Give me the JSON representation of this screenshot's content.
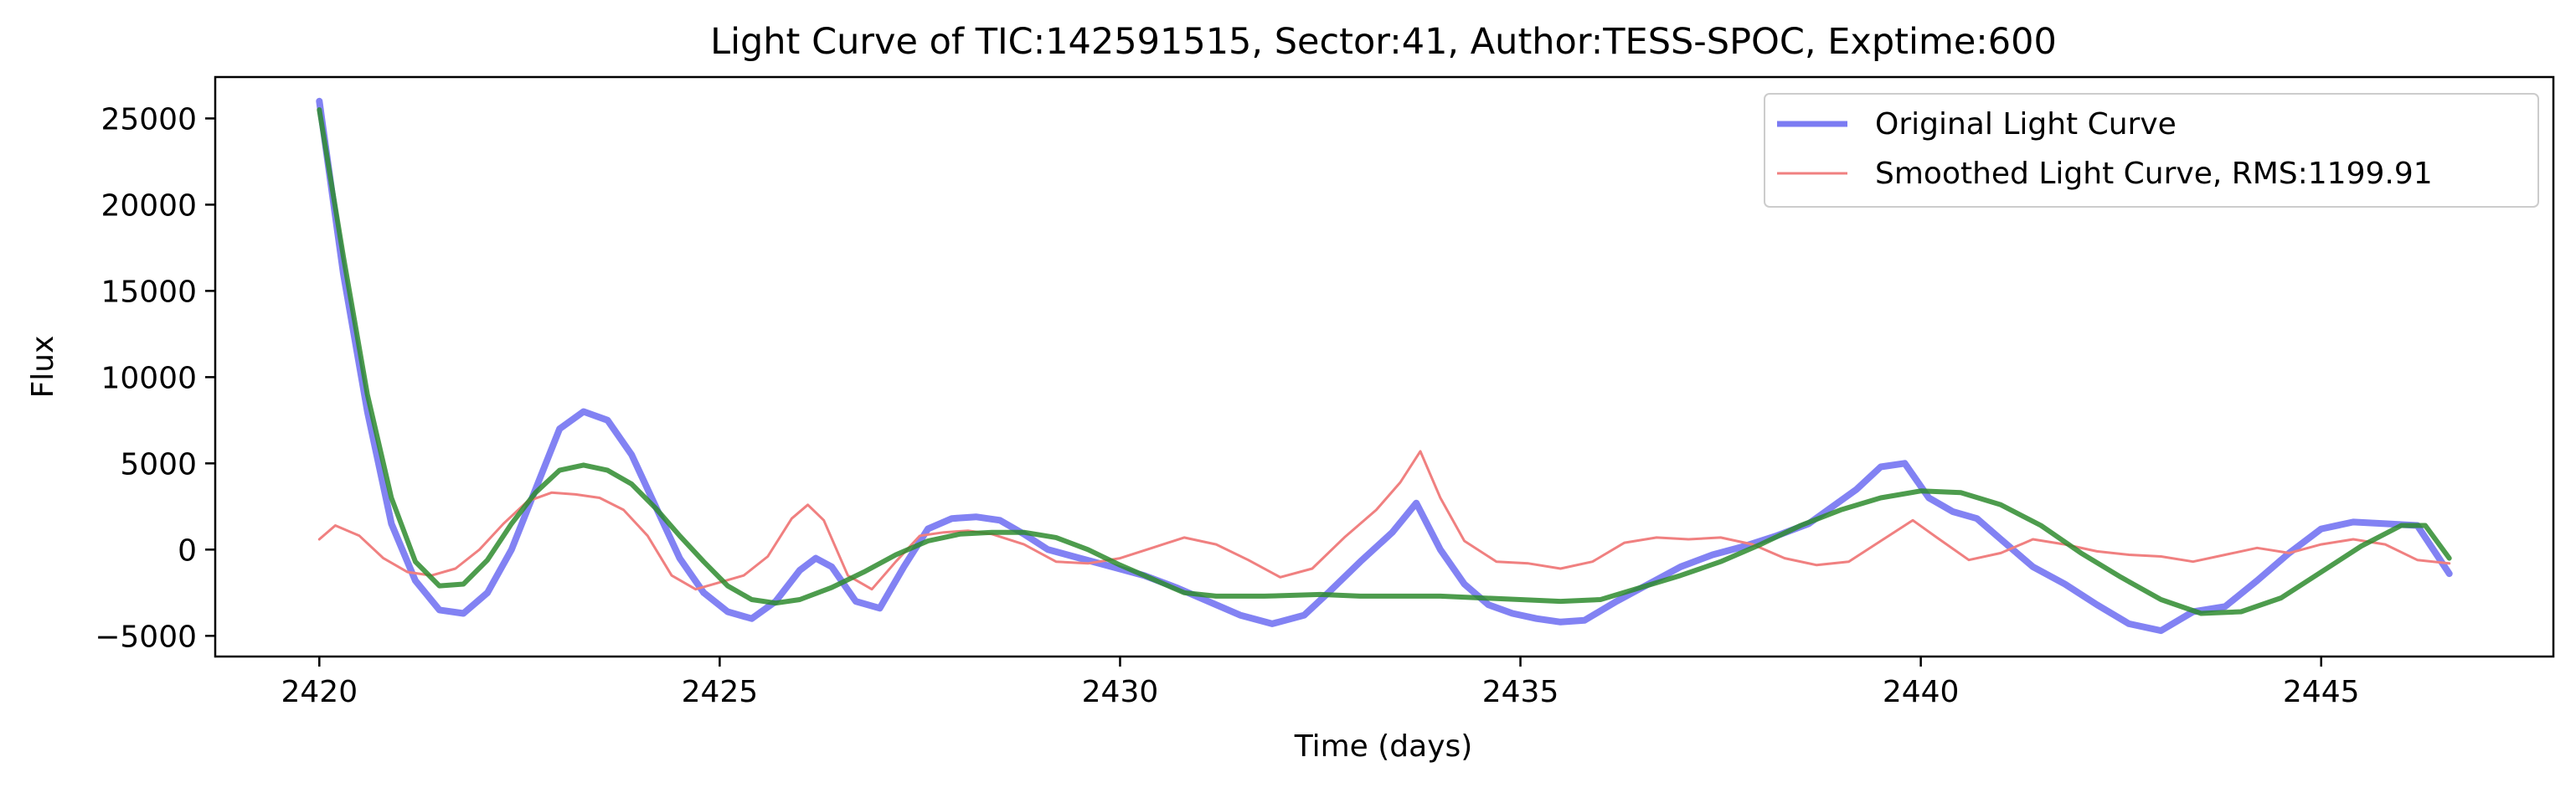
{
  "chart_data": {
    "type": "line",
    "title": "Light Curve of TIC:142591515, Sector:41, Author:TESS-SPOC, Exptime:600",
    "xlabel": "Time (days)",
    "ylabel": "Flux",
    "xlim": [
      2418.7,
      2447.9
    ],
    "ylim": [
      -6200,
      27400
    ],
    "xticks": [
      2420,
      2425,
      2430,
      2435,
      2440,
      2445
    ],
    "xtick_labels": [
      "2420",
      "2425",
      "2430",
      "2435",
      "2440",
      "2445"
    ],
    "yticks": [
      -5000,
      0,
      5000,
      10000,
      15000,
      20000,
      25000
    ],
    "ytick_labels": [
      "−5000",
      "0",
      "5000",
      "10000",
      "15000",
      "20000",
      "25000"
    ],
    "grid": false,
    "legend_position": "upper right",
    "series": [
      {
        "name": "Original Light Curve",
        "color": "#7b7bf2",
        "x": [
          2420.0,
          2420.3,
          2420.6,
          2420.9,
          2421.2,
          2421.5,
          2421.8,
          2422.1,
          2422.4,
          2422.7,
          2423.0,
          2423.3,
          2423.6,
          2423.9,
          2424.2,
          2424.5,
          2424.8,
          2425.1,
          2425.4,
          2425.7,
          2426.0,
          2426.2,
          2426.4,
          2426.7,
          2427.0,
          2427.3,
          2427.6,
          2427.9,
          2428.2,
          2428.5,
          2428.8,
          2429.1,
          2429.5,
          2429.9,
          2430.3,
          2430.7,
          2431.1,
          2431.5,
          2431.9,
          2432.3,
          2432.6,
          2433.0,
          2433.4,
          2433.7,
          2434.0,
          2434.3,
          2434.6,
          2434.9,
          2435.2,
          2435.5,
          2435.8,
          2436.2,
          2436.6,
          2437.0,
          2437.4,
          2437.8,
          2438.2,
          2438.6,
          2438.9,
          2439.2,
          2439.5,
          2439.8,
          2440.1,
          2440.4,
          2440.7,
          2441.0,
          2441.4,
          2441.8,
          2442.2,
          2442.6,
          2443.0,
          2443.4,
          2443.8,
          2444.2,
          2444.6,
          2445.0,
          2445.4,
          2445.8,
          2446.2,
          2446.6
        ],
        "y": [
          26000,
          16000,
          8000,
          1500,
          -1800,
          -3500,
          -3700,
          -2500,
          0,
          3500,
          7000,
          8000,
          7500,
          5500,
          2500,
          -500,
          -2500,
          -3600,
          -4000,
          -3000,
          -1200,
          -500,
          -1000,
          -3000,
          -3400,
          -1000,
          1200,
          1800,
          1900,
          1700,
          900,
          0,
          -500,
          -1000,
          -1500,
          -2200,
          -3000,
          -3800,
          -4300,
          -3800,
          -2500,
          -700,
          1000,
          2700,
          0,
          -2000,
          -3200,
          -3700,
          -4000,
          -4200,
          -4100,
          -3000,
          -2000,
          -1000,
          -300,
          200,
          800,
          1500,
          2500,
          3500,
          4800,
          5000,
          3000,
          2200,
          1800,
          600,
          -1000,
          -2000,
          -3200,
          -4300,
          -4700,
          -3600,
          -3300,
          -1800,
          -200,
          1200,
          1600,
          1500,
          1400,
          -1400
        ]
      },
      {
        "name": "Smoothed Light Curve, RMS:1199.91",
        "color": "#f08080",
        "x": [
          2420.0,
          2420.2,
          2420.5,
          2420.8,
          2421.1,
          2421.4,
          2421.7,
          2422.0,
          2422.3,
          2422.6,
          2422.9,
          2423.2,
          2423.5,
          2423.8,
          2424.1,
          2424.4,
          2424.7,
          2425.0,
          2425.3,
          2425.6,
          2425.9,
          2426.1,
          2426.3,
          2426.6,
          2426.9,
          2427.2,
          2427.5,
          2427.8,
          2428.1,
          2428.4,
          2428.8,
          2429.2,
          2429.6,
          2430.0,
          2430.4,
          2430.8,
          2431.2,
          2431.6,
          2432.0,
          2432.4,
          2432.8,
          2433.2,
          2433.5,
          2433.75,
          2434.0,
          2434.3,
          2434.7,
          2435.1,
          2435.5,
          2435.9,
          2436.3,
          2436.7,
          2437.1,
          2437.5,
          2437.9,
          2438.3,
          2438.7,
          2439.1,
          2439.5,
          2439.9,
          2440.2,
          2440.6,
          2441.0,
          2441.4,
          2441.8,
          2442.2,
          2442.6,
          2443.0,
          2443.4,
          2443.8,
          2444.2,
          2444.6,
          2445.0,
          2445.4,
          2445.8,
          2446.2,
          2446.6
        ],
        "y": [
          600,
          1400,
          800,
          -500,
          -1300,
          -1500,
          -1100,
          0,
          1500,
          2800,
          3300,
          3200,
          3000,
          2300,
          800,
          -1500,
          -2300,
          -1900,
          -1500,
          -400,
          1800,
          2600,
          1700,
          -1500,
          -2300,
          -700,
          800,
          1000,
          1100,
          900,
          300,
          -700,
          -800,
          -500,
          100,
          700,
          300,
          -600,
          -1600,
          -1100,
          700,
          2300,
          3900,
          5700,
          3000,
          500,
          -700,
          -800,
          -1100,
          -700,
          400,
          700,
          600,
          700,
          300,
          -500,
          -900,
          -700,
          500,
          1700,
          700,
          -600,
          -200,
          600,
          300,
          -100,
          -300,
          -400,
          -700,
          -300,
          100,
          -200,
          300,
          600,
          300,
          -600,
          -800
        ]
      },
      {
        "name": "",
        "color": "#2e8b2e",
        "x": [
          2420.0,
          2420.3,
          2420.6,
          2420.9,
          2421.2,
          2421.5,
          2421.8,
          2422.1,
          2422.4,
          2422.7,
          2423.0,
          2423.3,
          2423.6,
          2423.9,
          2424.2,
          2424.5,
          2424.8,
          2425.1,
          2425.4,
          2425.7,
          2426.0,
          2426.4,
          2426.8,
          2427.2,
          2427.6,
          2428.0,
          2428.4,
          2428.8,
          2429.2,
          2429.6,
          2430.0,
          2430.4,
          2430.8,
          2431.2,
          2431.8,
          2432.5,
          2433.0,
          2433.5,
          2434.0,
          2434.5,
          2435.0,
          2435.5,
          2436.0,
          2436.5,
          2437.0,
          2437.5,
          2438.0,
          2438.5,
          2439.0,
          2439.5,
          2440.0,
          2440.5,
          2441.0,
          2441.5,
          2442.0,
          2442.5,
          2443.0,
          2443.5,
          2444.0,
          2444.5,
          2445.0,
          2445.5,
          2446.0,
          2446.3,
          2446.6
        ],
        "y": [
          25500,
          17000,
          9000,
          3000,
          -700,
          -2100,
          -2000,
          -600,
          1500,
          3300,
          4600,
          4900,
          4600,
          3800,
          2400,
          800,
          -700,
          -2100,
          -2900,
          -3100,
          -2900,
          -2200,
          -1300,
          -300,
          500,
          900,
          1000,
          1000,
          700,
          0,
          -900,
          -1700,
          -2500,
          -2700,
          -2700,
          -2600,
          -2700,
          -2700,
          -2700,
          -2800,
          -2900,
          -3000,
          -2900,
          -2200,
          -1500,
          -700,
          300,
          1400,
          2300,
          3000,
          3400,
          3300,
          2600,
          1400,
          -200,
          -1600,
          -2900,
          -3700,
          -3600,
          -2800,
          -1300,
          200,
          1400,
          1400,
          -500
        ]
      }
    ]
  }
}
